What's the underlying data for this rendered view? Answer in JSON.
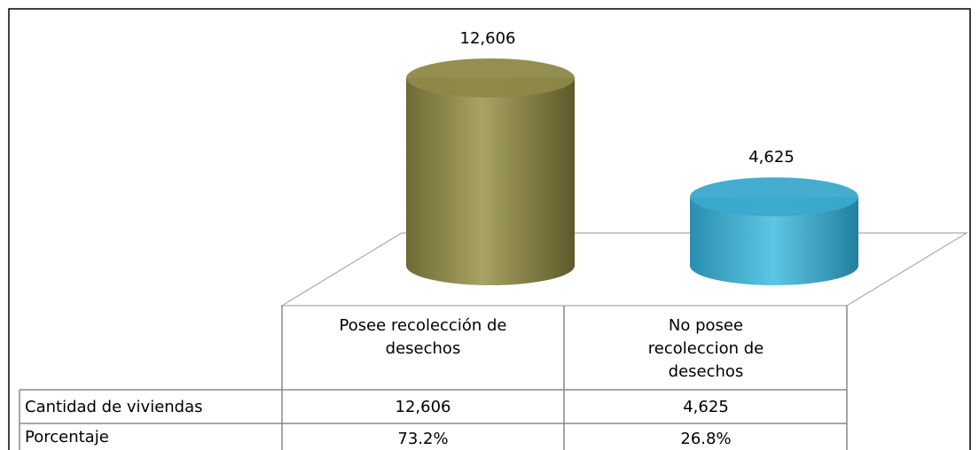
{
  "chart_data": {
    "type": "cylinder",
    "categories": [
      "Posee recolección de desechos",
      "No posee recoleccion de desechos"
    ],
    "values": [
      12606,
      4625
    ],
    "value_labels": [
      "12,606",
      "4,625"
    ],
    "colors": [
      "#8e8848",
      "#3aa9cc"
    ],
    "table": {
      "row_labels": [
        "Cantidad de viviendas",
        "Porcentaje"
      ],
      "percentages": [
        73.2,
        26.8
      ],
      "percentage_labels": [
        "73.2%",
        "26.8%"
      ]
    }
  }
}
